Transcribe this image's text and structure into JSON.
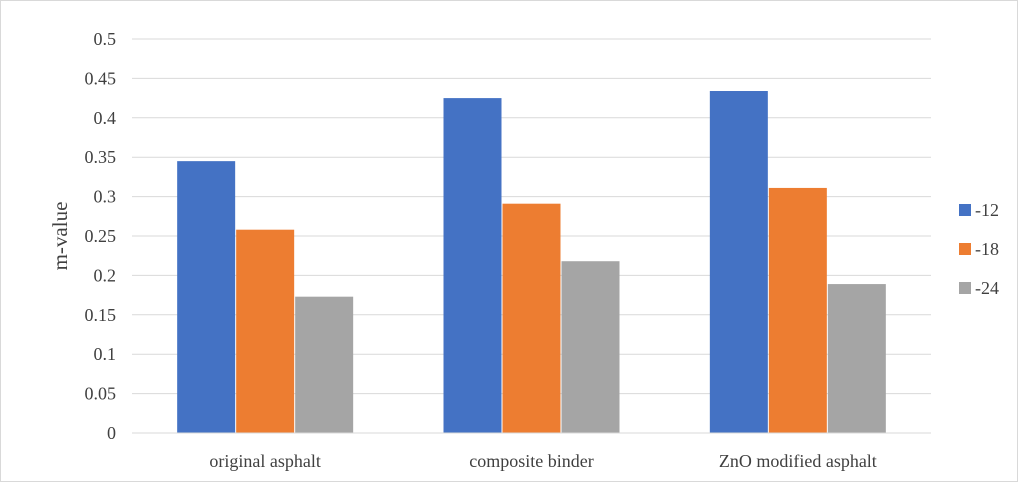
{
  "chart_data": {
    "type": "bar",
    "title": "",
    "xlabel": "",
    "ylabel": "m-value",
    "categories": [
      "original asphalt",
      "composite binder",
      "ZnO modified asphalt"
    ],
    "series": [
      {
        "name": "-12",
        "color": "#4472c4",
        "values": [
          0.345,
          0.425,
          0.434
        ]
      },
      {
        "name": "-18",
        "color": "#ed7d31",
        "values": [
          0.258,
          0.291,
          0.311
        ]
      },
      {
        "name": "-24",
        "color": "#a5a5a5",
        "values": [
          0.173,
          0.218,
          0.189
        ]
      }
    ],
    "ylim": [
      0,
      0.5
    ],
    "yticks": [
      "0",
      "0.05",
      "0.1",
      "0.15",
      "0.2",
      "0.25",
      "0.3",
      "0.35",
      "0.4",
      "0.45",
      "0.5"
    ],
    "grid": true,
    "legend": "right"
  }
}
